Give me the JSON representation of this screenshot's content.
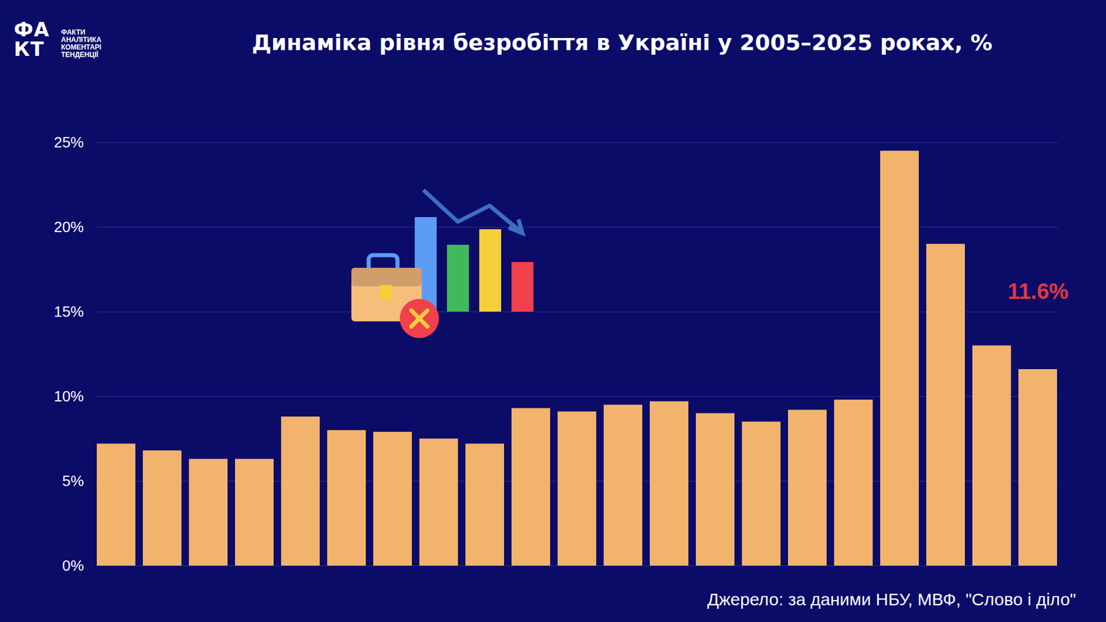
{
  "chart_data": {
    "type": "bar",
    "title": "Динаміка рівня безробіття в Україні у 2005–2025 роках, %",
    "source": "Джерело: за даними НБУ, МВФ, \"Слово і діло\"",
    "logo": {
      "mark": [
        "ФА",
        "КТ"
      ],
      "lines": [
        "ФАКТИ",
        "АНАЛІТИКА",
        "КОМЕНТАРІ",
        "ТЕНДЕНЦІЇ"
      ]
    },
    "categories": [
      null,
      null,
      null,
      null,
      null,
      null,
      null,
      null,
      null,
      null,
      null,
      null,
      null,
      null,
      null,
      null,
      null,
      null,
      null,
      null,
      null
    ],
    "values": [
      7.2,
      6.8,
      6.3,
      6.3,
      8.8,
      8.0,
      7.9,
      7.5,
      7.2,
      9.3,
      9.1,
      9.5,
      9.7,
      9.0,
      8.5,
      9.2,
      9.8,
      24.5,
      19.0,
      13.0,
      11.6
    ],
    "value_labels": [
      null,
      null,
      null,
      null,
      null,
      null,
      null,
      null,
      null,
      null,
      null,
      null,
      null,
      null,
      null,
      null,
      null,
      null,
      null,
      null,
      "11.6%"
    ],
    "data_labels": true,
    "color": "#f2b46d",
    "ylim": [
      0,
      25
    ],
    "yticks": [
      {
        "value": 0,
        "label": "0%"
      },
      {
        "value": 5,
        "label": "5%"
      },
      {
        "value": 10,
        "label": "10%"
      },
      {
        "value": 15,
        "label": "15%"
      },
      {
        "value": 20,
        "label": "20%"
      },
      {
        "value": 25,
        "label": "25%"
      }
    ],
    "grid": true,
    "tick_labels": "y"
  }
}
